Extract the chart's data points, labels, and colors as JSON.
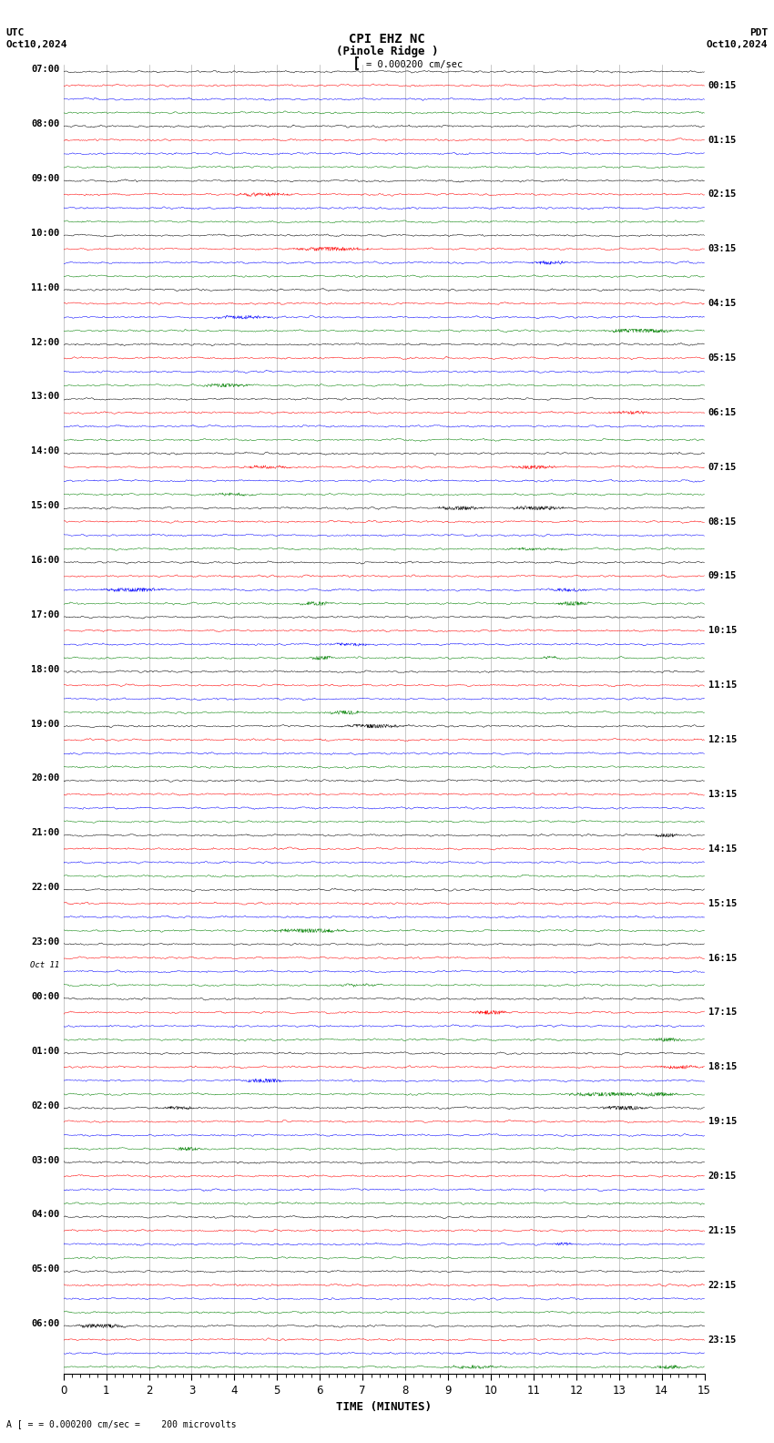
{
  "title_line1": "CPI EHZ NC",
  "title_line2": "(Pinole Ridge )",
  "scale_label": "= 0.000200 cm/sec",
  "footer_label": "= 0.000200 cm/sec =    200 microvolts",
  "utc_label": "UTC",
  "utc_date": "Oct10,2024",
  "pdt_label": "PDT",
  "pdt_date": "Oct10,2024",
  "left_times": [
    "07:00",
    "08:00",
    "09:00",
    "10:00",
    "11:00",
    "12:00",
    "13:00",
    "14:00",
    "15:00",
    "16:00",
    "17:00",
    "18:00",
    "19:00",
    "20:00",
    "21:00",
    "22:00",
    "23:00",
    "Oct 11",
    "00:00",
    "01:00",
    "02:00",
    "03:00",
    "04:00",
    "05:00",
    "06:00"
  ],
  "right_times": [
    "00:15",
    "01:15",
    "02:15",
    "03:15",
    "04:15",
    "05:15",
    "06:15",
    "07:15",
    "08:15",
    "09:15",
    "10:15",
    "11:15",
    "12:15",
    "13:15",
    "14:15",
    "15:15",
    "16:15",
    "17:15",
    "18:15",
    "19:15",
    "20:15",
    "21:15",
    "22:15",
    "23:15"
  ],
  "colors": [
    "black",
    "red",
    "blue",
    "green"
  ],
  "n_rows": 24,
  "n_traces_per_row": 4,
  "x_label": "TIME (MINUTES)",
  "x_min": 0,
  "x_max": 15,
  "x_ticks": [
    0,
    1,
    2,
    3,
    4,
    5,
    6,
    7,
    8,
    9,
    10,
    11,
    12,
    13,
    14,
    15
  ],
  "bg_color": "#ffffff",
  "seed": 42
}
